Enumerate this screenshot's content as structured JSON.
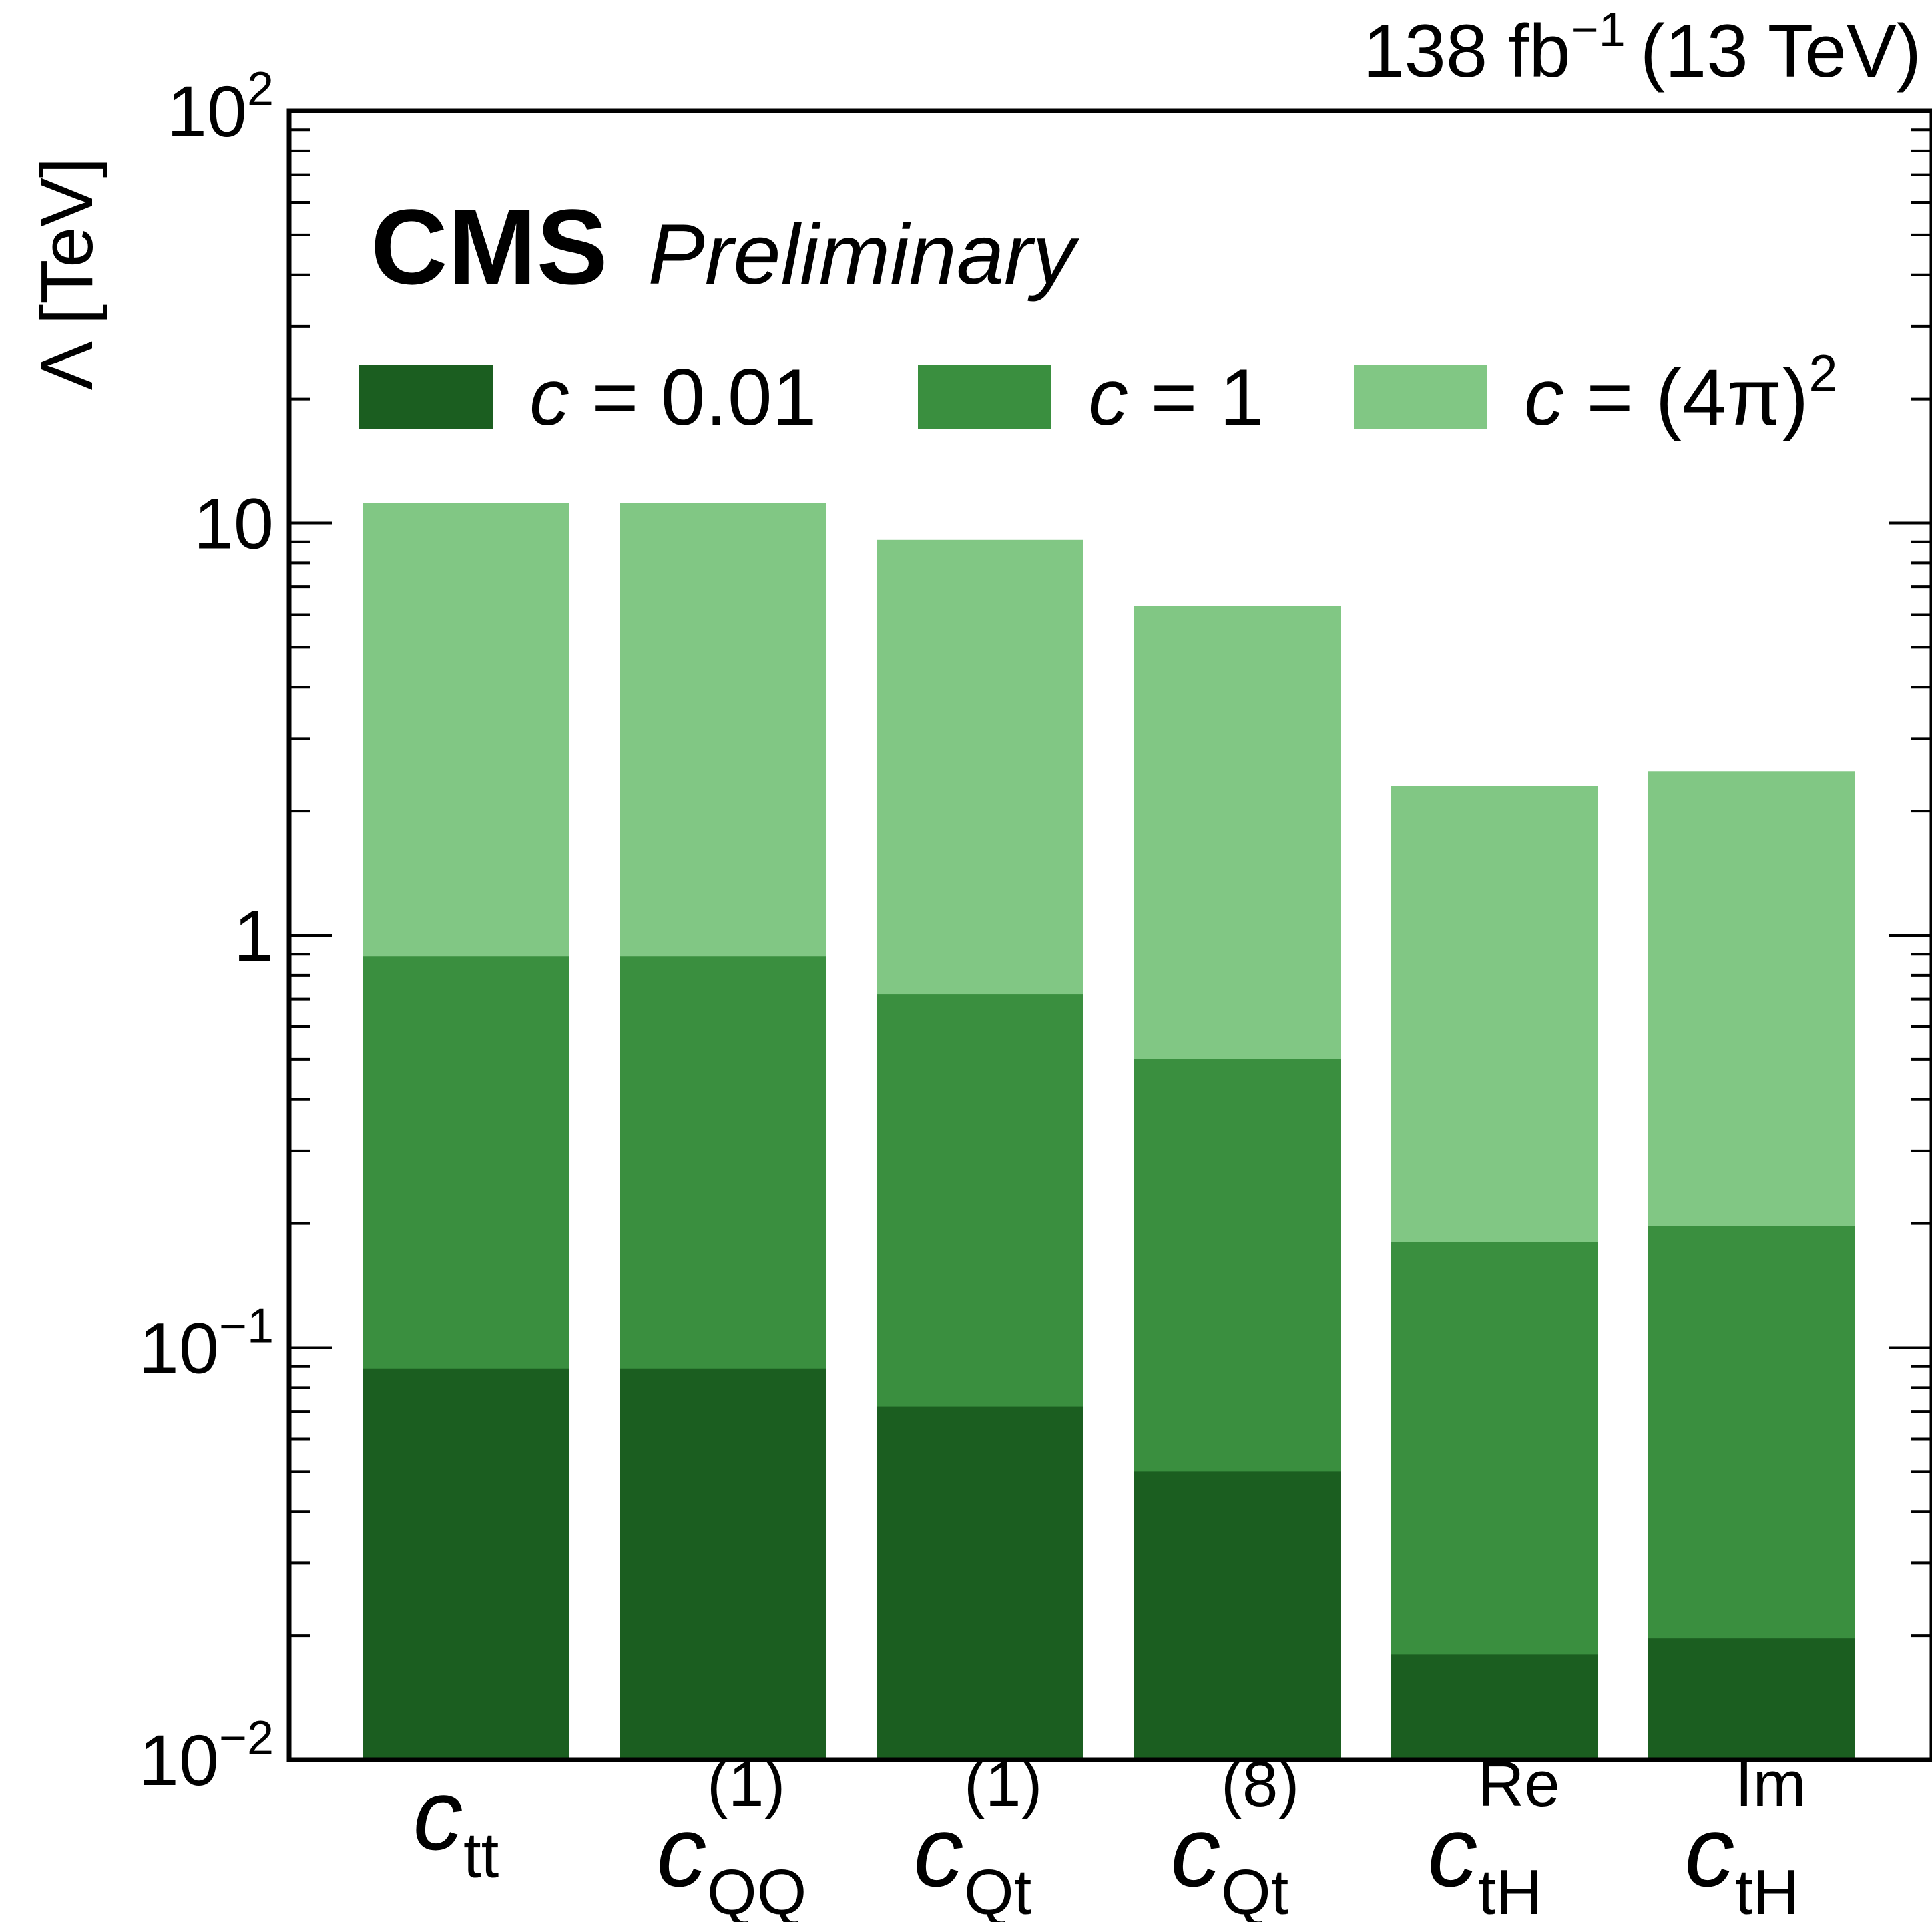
{
  "chart_data": {
    "type": "bar",
    "layout": "overlaid",
    "yscale": "log",
    "ylim": [
      0.01,
      100
    ],
    "ylabel": "Λ [TeV]",
    "lumi_text": "138 fb",
    "lumi_exp": "−1",
    "energy_text": "(13 TeV)",
    "experiment": "CMS",
    "status": "Preliminary",
    "yticks": [
      {
        "value": 100,
        "base": "10",
        "exp": "2"
      },
      {
        "value": 10,
        "base": "10",
        "exp": ""
      },
      {
        "value": 1,
        "base": "1",
        "exp": ""
      },
      {
        "value": 0.1,
        "base": "10",
        "exp": "−1"
      },
      {
        "value": 0.01,
        "base": "10",
        "exp": "−2"
      }
    ],
    "categories": [
      {
        "sym": "c",
        "sub": "tt",
        "sup": ""
      },
      {
        "sym": "c",
        "sub": "QQ",
        "sup": "(1)"
      },
      {
        "sym": "c",
        "sub": "Qt",
        "sup": "(1)"
      },
      {
        "sym": "c",
        "sub": "Qt",
        "sup": "(8)"
      },
      {
        "sym": "c",
        "sub": "tH",
        "sup": "Re"
      },
      {
        "sym": "c",
        "sub": "tH",
        "sup": "Im"
      }
    ],
    "series": [
      {
        "legend_sym": "c",
        "legend_rest": " = (4π)",
        "legend_exp": "2",
        "color": "#81c784",
        "values": [
          11.2,
          11.2,
          9.1,
          6.3,
          2.3,
          2.5
        ]
      },
      {
        "legend_sym": "c",
        "legend_rest": " = 1",
        "legend_exp": "",
        "color": "#3a8f3f",
        "values": [
          0.89,
          0.89,
          0.72,
          0.5,
          0.18,
          0.197
        ]
      },
      {
        "legend_sym": "c",
        "legend_rest": " = 0.01",
        "legend_exp": "",
        "color": "#1b5e20",
        "values": [
          0.089,
          0.089,
          0.072,
          0.05,
          0.018,
          0.0197
        ]
      }
    ],
    "legend_order": [
      2,
      1,
      0
    ],
    "grid": false,
    "legend_position": "top"
  }
}
